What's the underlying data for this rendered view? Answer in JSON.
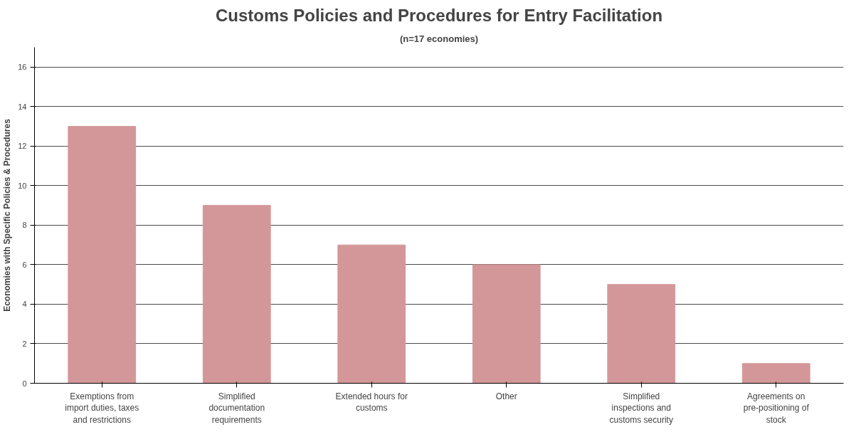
{
  "chart_data": {
    "type": "bar",
    "title": "Customs Policies and Procedures for Entry Facilitation",
    "subtitle": "(n=17 economies)",
    "ylabel": "Economies with Specific Policies & Procedures",
    "categories": [
      "Exemptions from import duties, taxes and restrictions",
      "Simplified documentation requirements",
      "Extended hours for customs",
      "Other",
      "Simplified inspections and customs security",
      "Agreements on pre-positioning of stock"
    ],
    "values": [
      13,
      9,
      7,
      6,
      5,
      1
    ],
    "color": "#d49799",
    "ylim": [
      0,
      17
    ],
    "yticks": [
      0,
      2,
      4,
      6,
      8,
      10,
      12,
      14,
      16
    ],
    "grid": "y"
  }
}
